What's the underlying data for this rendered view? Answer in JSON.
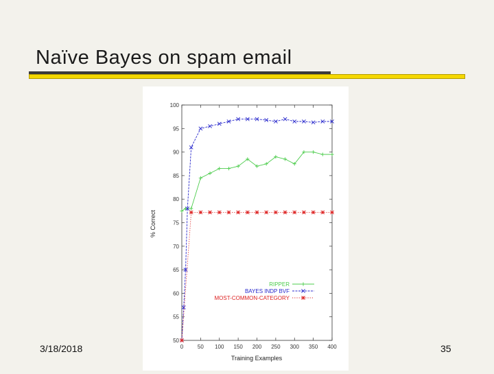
{
  "slide": {
    "title": "Naïve Bayes on spam email",
    "date": "3/18/2018",
    "page_number": "35"
  },
  "colors": {
    "background": "#f3f2ec",
    "accent_yellow": "#f5d800",
    "ripper": "#4ccc4c",
    "bayes": "#2828cc",
    "mcc": "#dd2222"
  },
  "chart_data": {
    "type": "line",
    "title": "",
    "xlabel": "Training Examples",
    "ylabel": "% Correct",
    "xlim": [
      0,
      400
    ],
    "ylim": [
      50,
      100
    ],
    "x_ticks": [
      0,
      50,
      100,
      150,
      200,
      250,
      300,
      350,
      400
    ],
    "y_ticks": [
      50,
      55,
      60,
      65,
      70,
      75,
      80,
      85,
      90,
      95,
      100
    ],
    "grid": false,
    "legend_position": "bottom-right",
    "series": [
      {
        "name": "RIPPER",
        "color": "#4ccc4c",
        "marker": "+",
        "x": [
          0,
          10,
          25,
          50,
          75,
          100,
          125,
          150,
          175,
          200,
          225,
          250,
          275,
          300,
          325,
          350,
          375,
          400
        ],
        "y": [
          77.5,
          78,
          78,
          84.5,
          85.5,
          86.5,
          86.5,
          87,
          88.5,
          87,
          87.5,
          89,
          88.5,
          87.5,
          90,
          90,
          89.5,
          89.5
        ]
      },
      {
        "name": "BAYES INDP BVF",
        "color": "#2828cc",
        "marker": "x",
        "x": [
          0,
          5,
          10,
          15,
          25,
          50,
          75,
          100,
          125,
          150,
          175,
          200,
          225,
          250,
          275,
          300,
          325,
          350,
          375,
          400
        ],
        "y": [
          50,
          57,
          65,
          78,
          91,
          95,
          95.5,
          96,
          96.5,
          97,
          97,
          97,
          96.8,
          96.5,
          97,
          96.5,
          96.5,
          96.3,
          96.5,
          96.5
        ]
      },
      {
        "name": "MOST-COMMON-CATEGORY",
        "color": "#dd2222",
        "marker": "*",
        "x": [
          0,
          25,
          50,
          75,
          100,
          125,
          150,
          175,
          200,
          225,
          250,
          275,
          300,
          325,
          350,
          375,
          400
        ],
        "y": [
          50,
          77.2,
          77.2,
          77.2,
          77.2,
          77.2,
          77.2,
          77.2,
          77.2,
          77.2,
          77.2,
          77.2,
          77.2,
          77.2,
          77.2,
          77.2,
          77.2
        ]
      }
    ]
  }
}
